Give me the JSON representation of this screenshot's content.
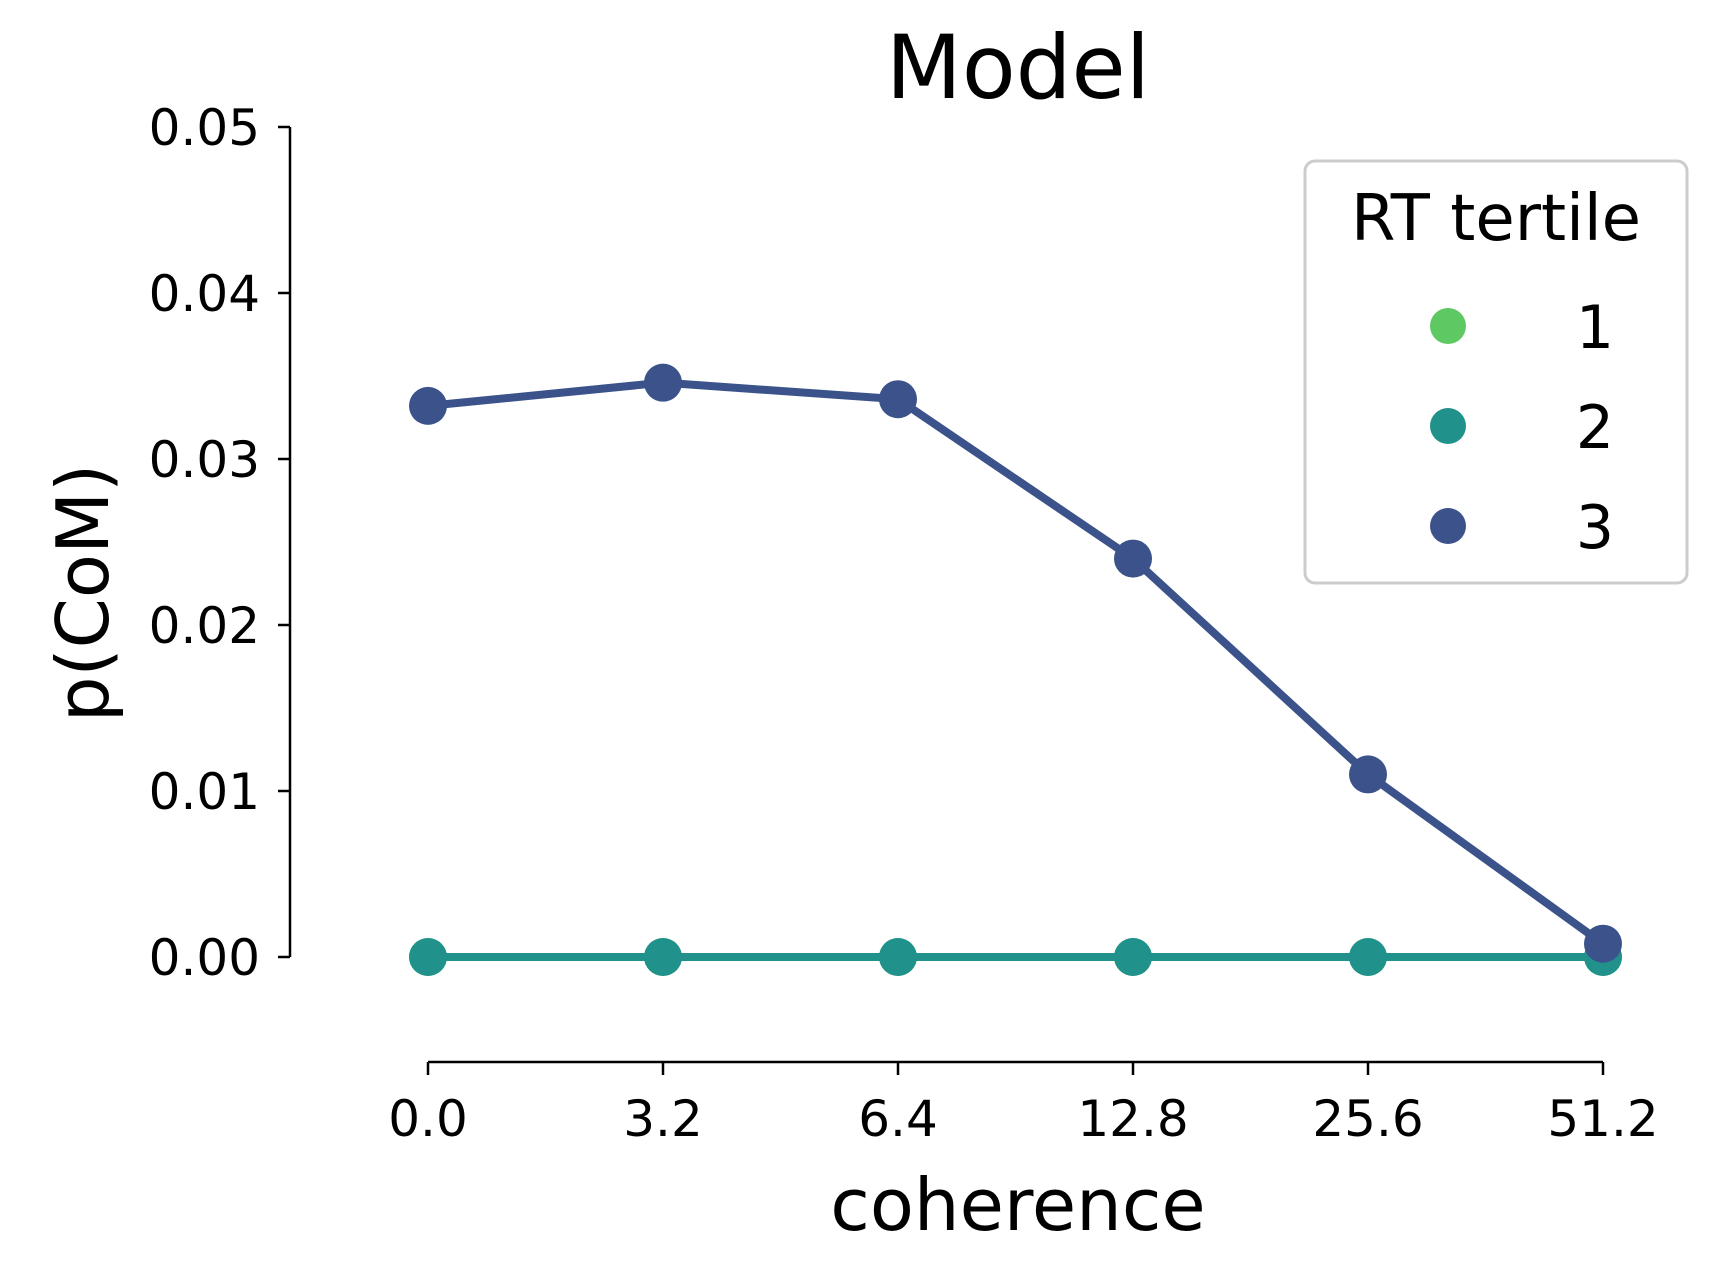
{
  "chart_data": {
    "type": "line",
    "title": "Model",
    "xlabel": "coherence",
    "ylabel": "p(CoM)",
    "categories": [
      "0.0",
      "3.2",
      "6.4",
      "12.8",
      "25.6",
      "51.2"
    ],
    "ylim": [
      -0.0065,
      0.05
    ],
    "yticks": [
      "0.00",
      "0.01",
      "0.02",
      "0.03",
      "0.04",
      "0.05"
    ],
    "grid": false,
    "legend": {
      "title": "RT tertile",
      "placement": "top-right"
    },
    "series": [
      {
        "name": "1",
        "color": "#5ec962",
        "values": [
          0,
          0,
          0,
          0,
          0,
          0
        ]
      },
      {
        "name": "2",
        "color": "#21918c",
        "values": [
          0,
          0,
          0,
          0,
          0,
          0
        ]
      },
      {
        "name": "3",
        "color": "#3b528b",
        "values": [
          0.0332,
          0.0346,
          0.0336,
          0.024,
          0.011,
          0.0008
        ]
      }
    ]
  }
}
